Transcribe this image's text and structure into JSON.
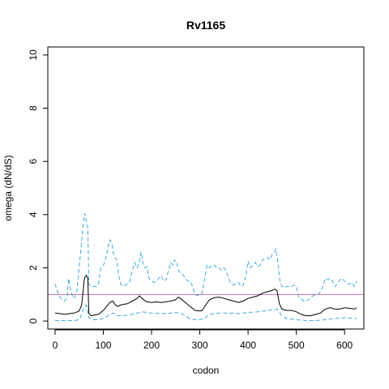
{
  "chart_data": {
    "type": "line",
    "title": "Rv1165",
    "xlabel": "codon",
    "ylabel": "omega (dN/dS)",
    "xlim": [
      -15,
      640
    ],
    "ylim": [
      -0.3,
      10.3
    ],
    "xticks": [
      0,
      100,
      200,
      300,
      400,
      500,
      600
    ],
    "yticks": [
      0,
      2,
      4,
      6,
      8,
      10
    ],
    "grid": false,
    "reference_line": {
      "y": 1,
      "color": "#d36fb0"
    },
    "series": [
      {
        "role": "upper-bound",
        "color": "#3fa9e0",
        "dash": true,
        "x": [
          0,
          5,
          10,
          15,
          20,
          25,
          28,
          32,
          36,
          40,
          45,
          50,
          55,
          58,
          60,
          62,
          65,
          68,
          70,
          73,
          76,
          80,
          85,
          90,
          95,
          100,
          103,
          106,
          110,
          114,
          118,
          120,
          124,
          128,
          132,
          136,
          140,
          145,
          150,
          155,
          160,
          165,
          170,
          175,
          178,
          182,
          186,
          190,
          195,
          200,
          205,
          210,
          215,
          220,
          225,
          230,
          235,
          240,
          245,
          248,
          252,
          256,
          260,
          265,
          270,
          275,
          280,
          285,
          290,
          295,
          300,
          305,
          310,
          315,
          320,
          325,
          330,
          335,
          340,
          345,
          350,
          355,
          360,
          365,
          370,
          375,
          380,
          385,
          390,
          395,
          400,
          405,
          410,
          415,
          420,
          425,
          430,
          435,
          440,
          445,
          450,
          455,
          458,
          462,
          466,
          470,
          475,
          480,
          485,
          490,
          495,
          500,
          505,
          510,
          515,
          520,
          525,
          530,
          535,
          540,
          545,
          550,
          555,
          560,
          565,
          570,
          575,
          580,
          585,
          590,
          595,
          600,
          605,
          610,
          615,
          620,
          625
        ],
        "y": [
          1.4,
          1.1,
          0.9,
          0.8,
          0.75,
          0.9,
          1.6,
          1.2,
          0.95,
          0.85,
          1.1,
          2.0,
          3.0,
          3.6,
          3.9,
          4.05,
          3.7,
          3.5,
          1.4,
          1.3,
          1.3,
          1.3,
          1.3,
          1.4,
          2.0,
          2.1,
          2.2,
          2.4,
          2.8,
          3.05,
          2.9,
          2.6,
          2.4,
          2.3,
          1.7,
          1.4,
          1.3,
          1.35,
          1.4,
          1.5,
          1.9,
          2.2,
          2.0,
          2.25,
          2.6,
          2.2,
          2.0,
          2.05,
          1.6,
          1.5,
          1.45,
          1.5,
          1.6,
          1.7,
          1.5,
          1.55,
          1.9,
          2.2,
          2.1,
          2.3,
          2.2,
          1.9,
          1.8,
          1.75,
          1.6,
          1.5,
          1.5,
          1.3,
          1.0,
          0.95,
          1.0,
          1.05,
          1.6,
          2.1,
          2.0,
          2.1,
          2.1,
          2.0,
          2.0,
          1.9,
          2.0,
          1.85,
          1.6,
          1.4,
          1.35,
          1.4,
          1.45,
          1.3,
          1.35,
          1.65,
          2.25,
          2.0,
          2.1,
          2.2,
          2.05,
          2.1,
          2.3,
          2.35,
          2.4,
          2.3,
          2.5,
          2.6,
          2.7,
          2.2,
          1.5,
          1.3,
          1.25,
          1.3,
          1.3,
          1.3,
          1.35,
          1.3,
          0.9,
          0.85,
          0.75,
          0.75,
          0.8,
          0.9,
          0.95,
          1.0,
          1.0,
          1.1,
          1.3,
          1.6,
          1.55,
          1.6,
          1.5,
          1.3,
          1.4,
          1.55,
          1.6,
          1.5,
          1.4,
          1.4,
          1.45,
          1.3,
          1.5
        ]
      },
      {
        "role": "estimate",
        "color": "#000000",
        "dash": false,
        "x": [
          0,
          10,
          20,
          30,
          40,
          50,
          55,
          58,
          60,
          62,
          65,
          68,
          70,
          73,
          76,
          80,
          90,
          100,
          105,
          110,
          115,
          120,
          125,
          130,
          135,
          140,
          150,
          160,
          170,
          175,
          180,
          190,
          200,
          210,
          220,
          230,
          240,
          250,
          255,
          260,
          270,
          280,
          290,
          300,
          305,
          310,
          320,
          330,
          340,
          350,
          360,
          370,
          380,
          390,
          400,
          410,
          420,
          430,
          440,
          450,
          455,
          460,
          465,
          470,
          480,
          490,
          500,
          510,
          520,
          530,
          540,
          550,
          560,
          570,
          580,
          590,
          600,
          610,
          620,
          625
        ],
        "y": [
          0.3,
          0.28,
          0.25,
          0.28,
          0.3,
          0.38,
          0.6,
          1.1,
          1.5,
          1.65,
          1.72,
          1.6,
          0.3,
          0.22,
          0.2,
          0.22,
          0.25,
          0.4,
          0.5,
          0.62,
          0.72,
          0.75,
          0.6,
          0.55,
          0.6,
          0.62,
          0.65,
          0.75,
          0.85,
          0.95,
          0.85,
          0.72,
          0.7,
          0.72,
          0.7,
          0.72,
          0.75,
          0.8,
          0.9,
          0.85,
          0.7,
          0.55,
          0.4,
          0.38,
          0.4,
          0.55,
          0.8,
          0.88,
          0.9,
          0.85,
          0.8,
          0.75,
          0.7,
          0.75,
          0.85,
          0.9,
          0.95,
          1.05,
          1.1,
          1.15,
          1.2,
          1.15,
          0.65,
          0.45,
          0.4,
          0.4,
          0.35,
          0.25,
          0.2,
          0.2,
          0.25,
          0.3,
          0.45,
          0.5,
          0.45,
          0.45,
          0.5,
          0.48,
          0.45,
          0.5
        ]
      },
      {
        "role": "lower-bound",
        "color": "#3fa9e0",
        "dash": true,
        "x": [
          0,
          20,
          40,
          50,
          55,
          60,
          65,
          70,
          80,
          90,
          100,
          110,
          120,
          130,
          140,
          160,
          180,
          200,
          220,
          240,
          250,
          260,
          270,
          280,
          290,
          300,
          310,
          320,
          340,
          360,
          380,
          400,
          420,
          440,
          460,
          470,
          480,
          500,
          520,
          540,
          560,
          580,
          600,
          620,
          625
        ],
        "y": [
          0.02,
          0.02,
          0.02,
          0.05,
          0.25,
          0.5,
          0.6,
          0.12,
          0.05,
          0.05,
          0.1,
          0.2,
          0.3,
          0.2,
          0.2,
          0.25,
          0.35,
          0.3,
          0.28,
          0.3,
          0.32,
          0.3,
          0.2,
          0.08,
          0.05,
          0.05,
          0.1,
          0.25,
          0.3,
          0.3,
          0.28,
          0.32,
          0.35,
          0.4,
          0.45,
          0.2,
          0.1,
          0.05,
          0.02,
          0.02,
          0.05,
          0.1,
          0.12,
          0.1,
          0.1
        ]
      }
    ]
  }
}
